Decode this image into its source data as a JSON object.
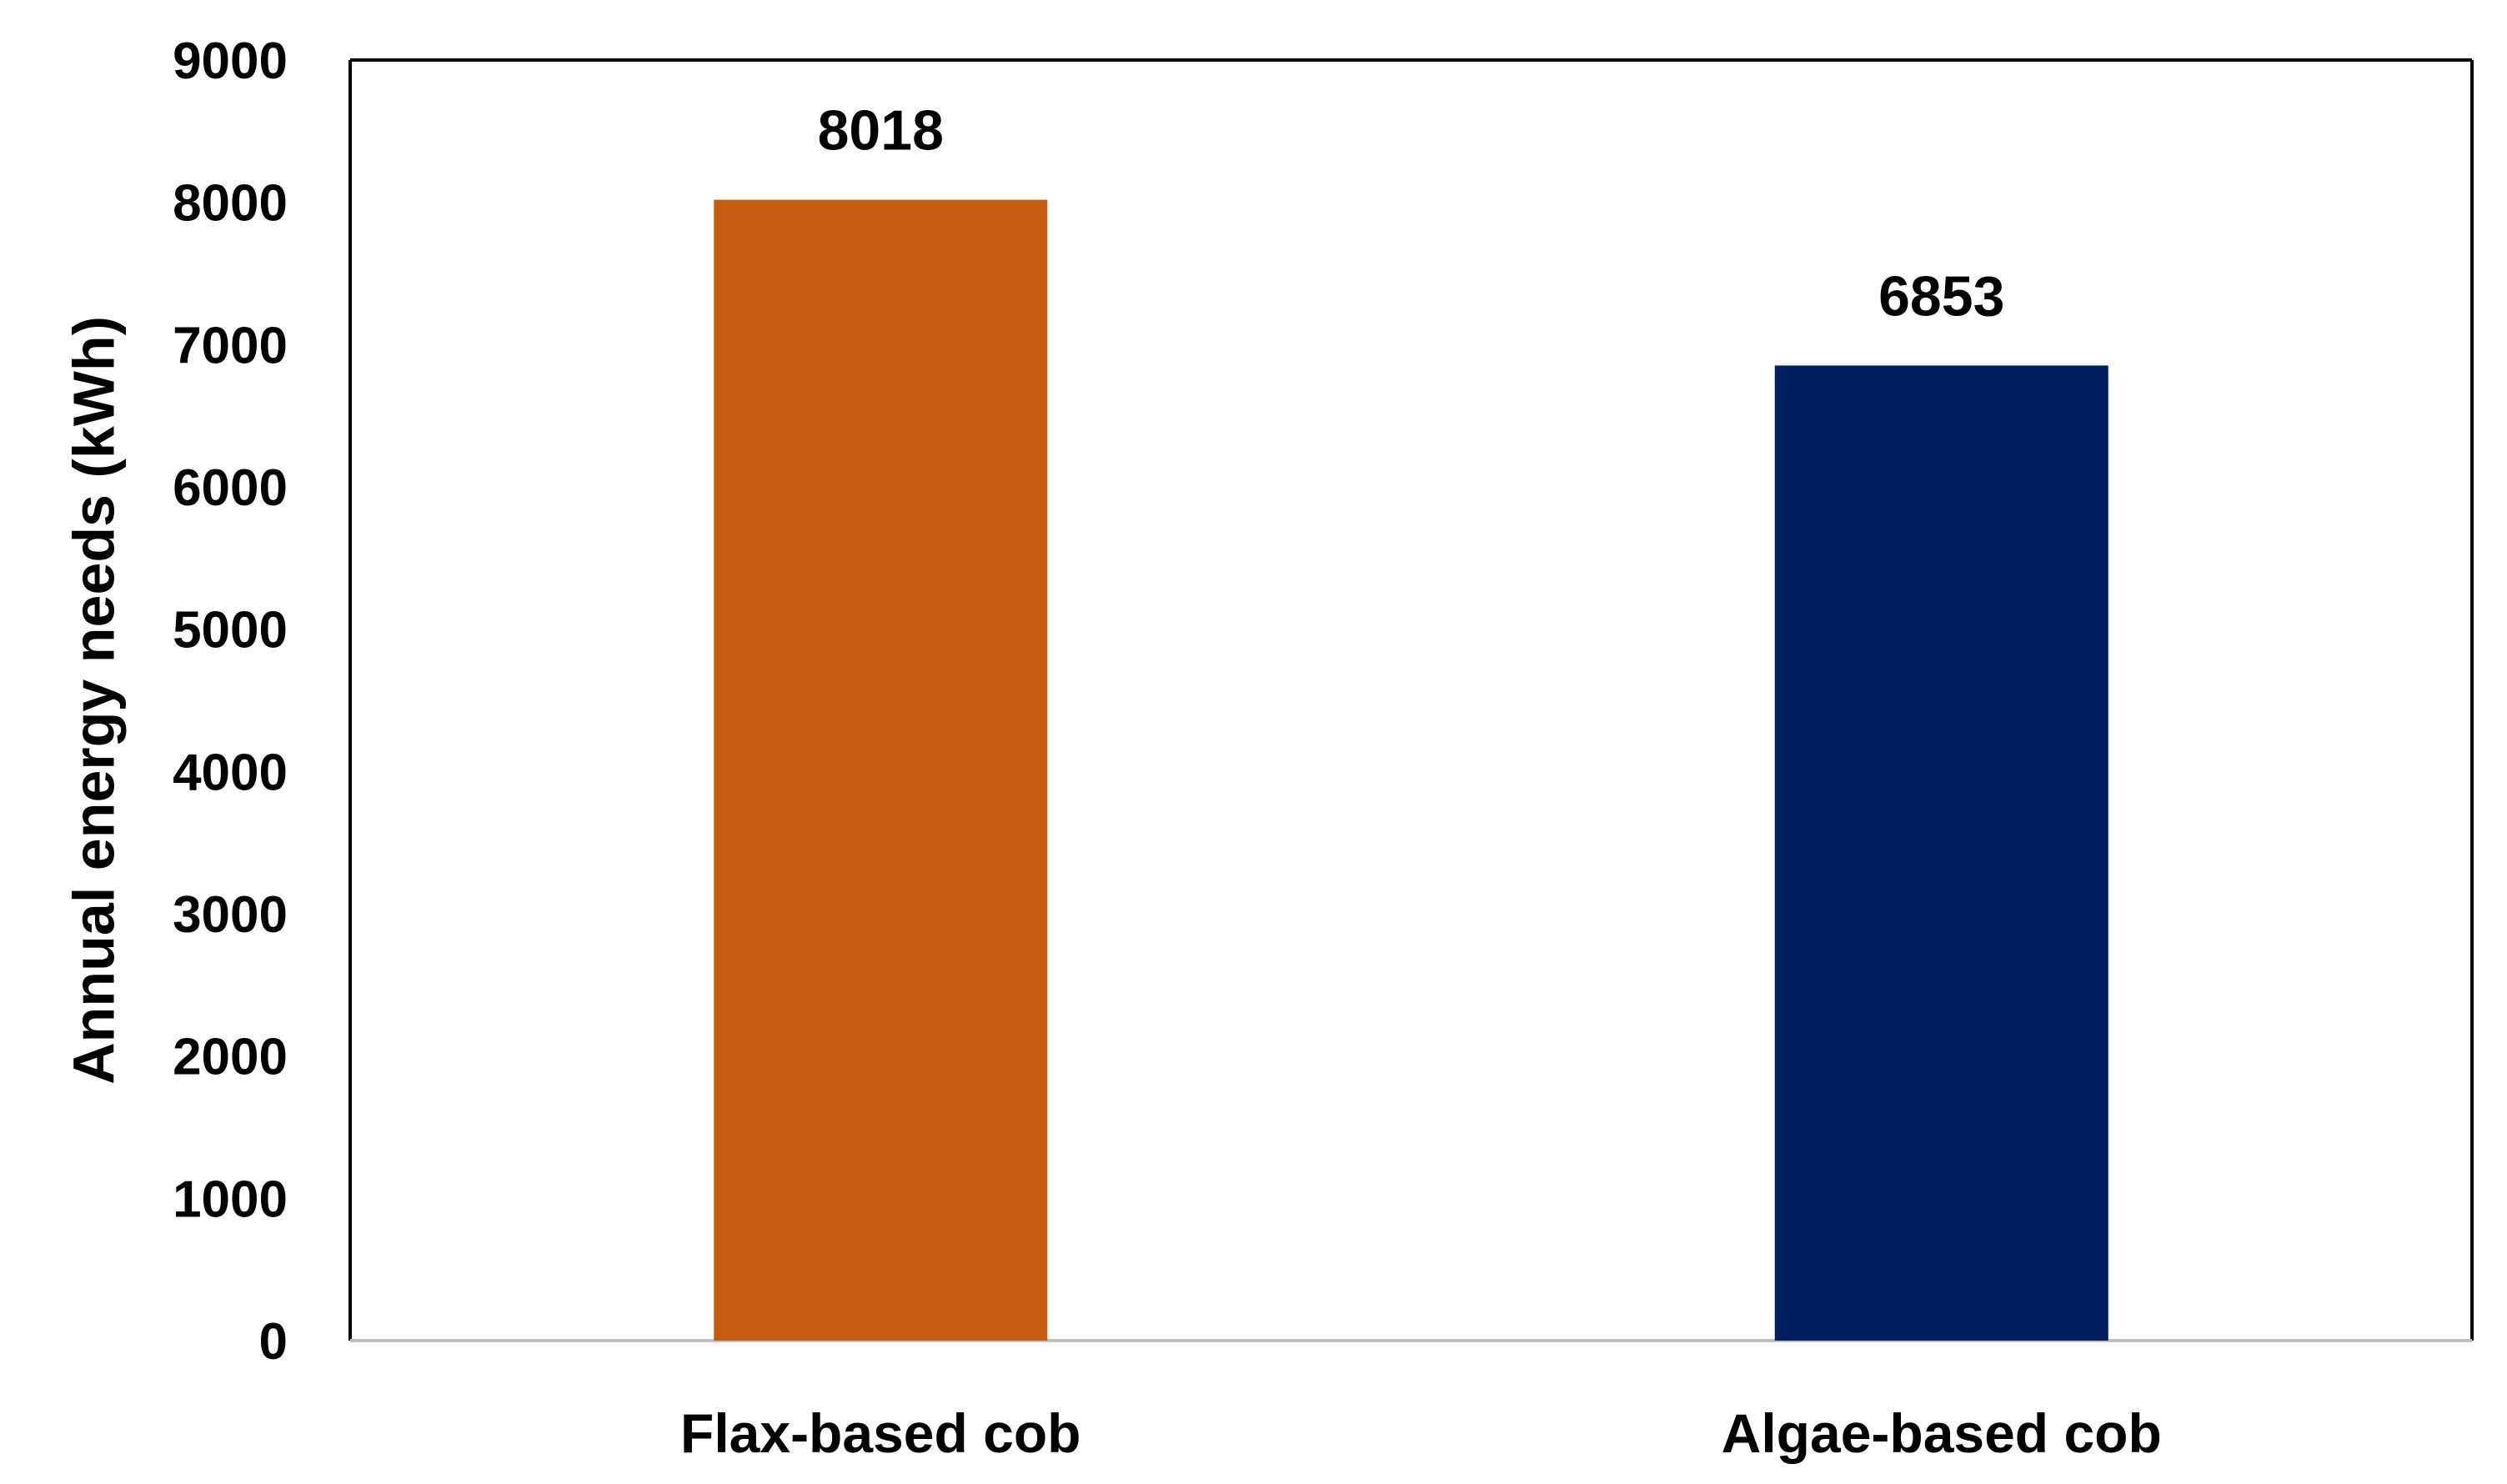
{
  "chart_data": {
    "type": "bar",
    "categories": [
      "Flax-based cob",
      "Algae-based cob"
    ],
    "values": [
      8018,
      6853
    ],
    "data_labels": [
      "8018",
      "6853"
    ],
    "colors": [
      "#C55A11",
      "#002060"
    ],
    "title": "",
    "xlabel": "",
    "ylabel": "Annual energy needs (kWh)",
    "ylim": [
      0,
      9000
    ],
    "yticks": [
      0,
      1000,
      2000,
      3000,
      4000,
      5000,
      6000,
      7000,
      8000,
      9000
    ],
    "ytick_labels": [
      "0",
      "1000",
      "2000",
      "3000",
      "4000",
      "5000",
      "6000",
      "7000",
      "8000",
      "9000"
    ],
    "grid": false,
    "legend": "none"
  }
}
